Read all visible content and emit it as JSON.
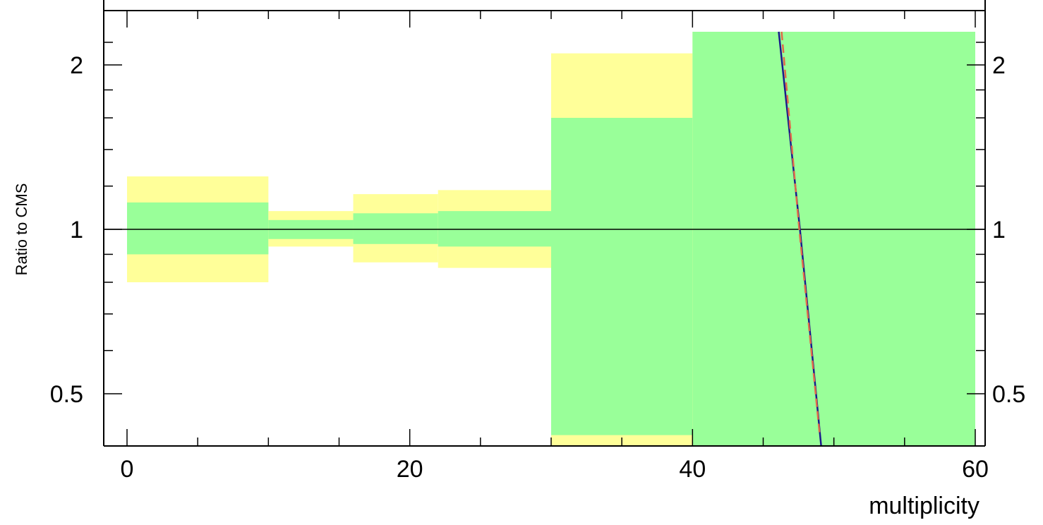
{
  "chart_data": {
    "type": "area",
    "title": "",
    "xlabel": "multiplicity",
    "ylabel": "Ratio to CMS",
    "xlim": [
      -1,
      60
    ],
    "ylim": [
      0.4,
      2.3
    ],
    "y_scale": "log",
    "x_ticks": [
      "0",
      "20",
      "40",
      "60"
    ],
    "y_ticks": [
      "0.5",
      "1",
      "2"
    ],
    "reference_line": 1,
    "bins": [
      {
        "x_low": 0,
        "x_high": 10,
        "outer_low": 0.8,
        "outer_high": 1.25,
        "inner_low": 0.9,
        "inner_high": 1.12
      },
      {
        "x_low": 10,
        "x_high": 16,
        "outer_low": 0.93,
        "outer_high": 1.08,
        "inner_low": 0.96,
        "inner_high": 1.04
      },
      {
        "x_low": 16,
        "x_high": 22,
        "outer_low": 0.87,
        "outer_high": 1.16,
        "inner_low": 0.94,
        "inner_high": 1.07
      },
      {
        "x_low": 22,
        "x_high": 30,
        "outer_low": 0.85,
        "outer_high": 1.18,
        "inner_low": 0.93,
        "inner_high": 1.08
      },
      {
        "x_low": 30,
        "x_high": 40,
        "outer_low": 0.4,
        "outer_high": 2.1,
        "inner_low": 0.42,
        "inner_high": 1.6
      },
      {
        "x_low": 40,
        "x_high": 60,
        "outer_low": 0.4,
        "outer_high": 2.3,
        "inner_low": 0.4,
        "inner_high": 2.3
      }
    ],
    "series": [
      {
        "color": "#1a1a8c",
        "style": "solid",
        "x": [
          46.1,
          47.6,
          49.1
        ],
        "y": [
          2.3,
          1.0,
          0.4
        ]
      },
      {
        "color": "#e06a4a",
        "style": "dashed",
        "x": [
          46.3,
          47.55,
          49.0
        ],
        "y": [
          2.3,
          1.0,
          0.42
        ]
      }
    ],
    "colors": {
      "outer_band": "#ffff99",
      "inner_band": "#99ff99",
      "axis": "#000000"
    }
  }
}
